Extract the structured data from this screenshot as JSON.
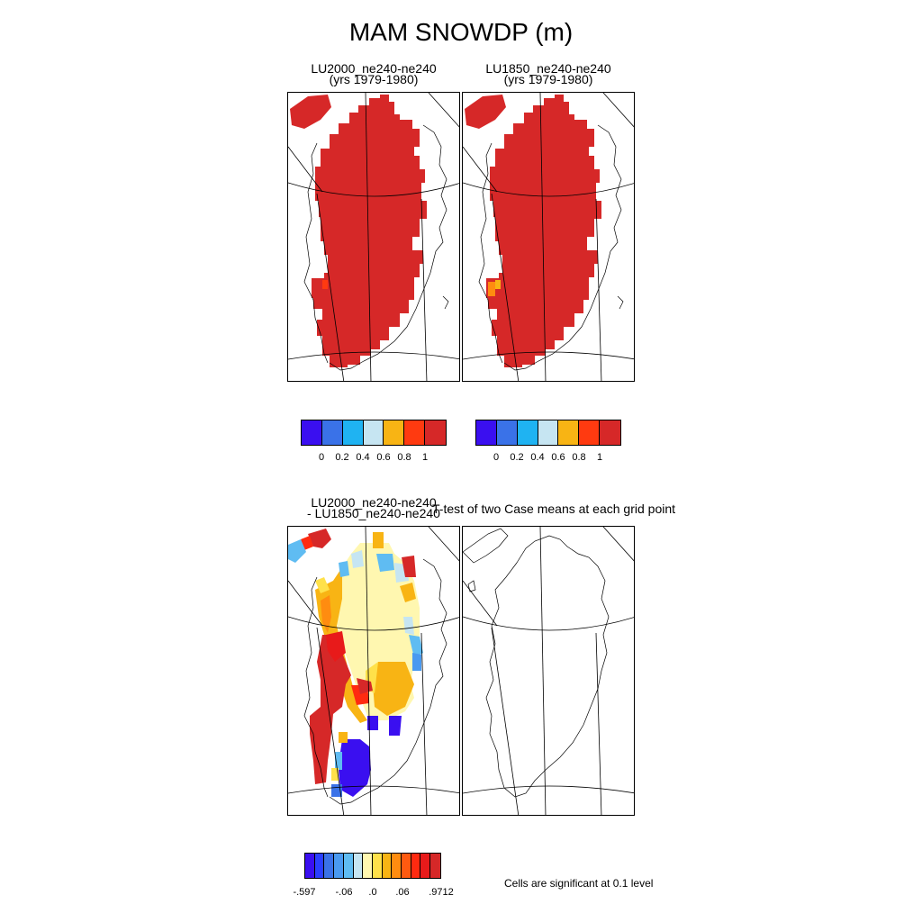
{
  "title": "MAM SNOWDP (m)",
  "panels": {
    "p1": {
      "line1": "LU2000_ne240-ne240",
      "line2": "(yrs 1979-1980)"
    },
    "p2": {
      "line1": "LU1850_ne240-ne240",
      "line2": "(yrs 1979-1980)"
    },
    "p3": {
      "line1": "LU2000_ne240-ne240",
      "line2": "- LU1850_ne240-ne240"
    },
    "p4": {
      "line1": "T-test of two Case means at each grid point"
    }
  },
  "colorbar_top": {
    "colors": [
      "#3a0ff0",
      "#3a72e8",
      "#1fb3f2",
      "#c6e5f2",
      "#f8b414",
      "#ff3a10",
      "#d62828"
    ],
    "labels": [
      "0",
      "0.2",
      "0.4",
      "0.6",
      "0.8",
      "1"
    ]
  },
  "colorbar_diff": {
    "colors": [
      "#3a0ff0",
      "#2a3fff",
      "#3a72e8",
      "#4a9af0",
      "#5fbcf2",
      "#c6e5f2",
      "#fff7b0",
      "#ffe14a",
      "#f8b414",
      "#ff8c10",
      "#ff5a10",
      "#ff2a10",
      "#e81a1a",
      "#d62828"
    ],
    "labels": [
      "-.597",
      "-.06",
      ".0",
      ".06",
      ".9712"
    ]
  },
  "note": "Cells are significant at 0.1 level"
}
